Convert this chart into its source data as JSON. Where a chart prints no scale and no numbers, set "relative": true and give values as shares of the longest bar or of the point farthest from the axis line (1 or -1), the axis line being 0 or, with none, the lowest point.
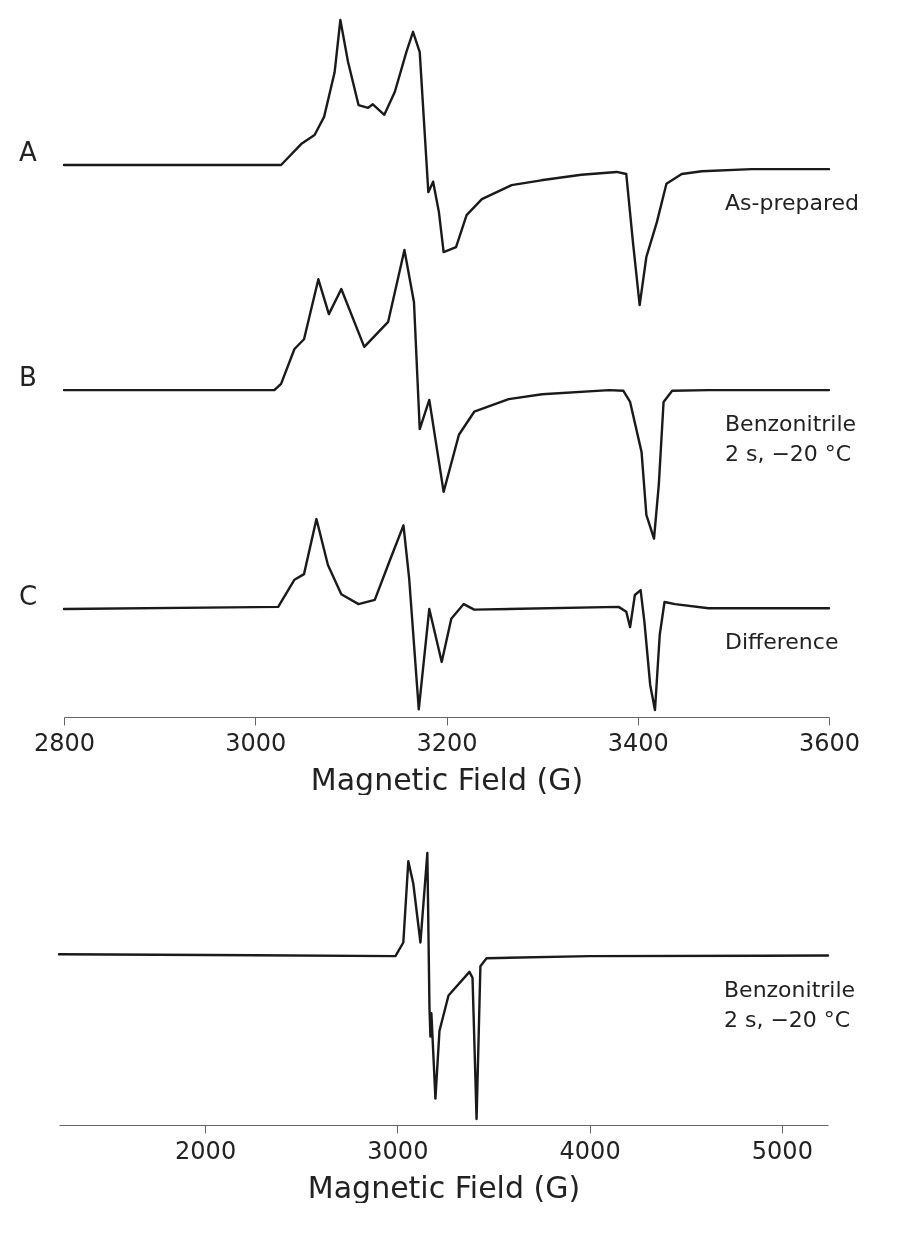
{
  "chart_data": [
    {
      "type": "line",
      "relative": true,
      "xlim": [
        2800,
        3600
      ],
      "xticks": [
        2800,
        3000,
        3200,
        3400,
        3600
      ],
      "xlabel": "Magnetic Field (G)",
      "annotations": [
        "A",
        "B",
        "C"
      ],
      "series": [
        {
          "name": "As-prepared",
          "color": "#1a1a1a",
          "x": [
            2800,
            3027,
            3048,
            3062,
            3072,
            3083,
            3089,
            3097,
            3108,
            3118,
            3123,
            3135,
            3146,
            3158,
            3165,
            3172,
            3181,
            3186,
            3192,
            3197,
            3210,
            3221,
            3237,
            3268,
            3299,
            3341,
            3378,
            3388,
            3395,
            3402,
            3409,
            3420,
            3430,
            3446,
            3467,
            3519,
            3600
          ],
          "values": [
            0.792,
            0.792,
            0.822,
            0.835,
            0.861,
            0.925,
            1,
            0.94,
            0.878,
            0.874,
            0.879,
            0.864,
            0.897,
            0.954,
            0.983,
            0.954,
            0.753,
            0.768,
            0.725,
            0.667,
            0.674,
            0.72,
            0.743,
            0.763,
            0.77,
            0.778,
            0.782,
            0.779,
            0.681,
            0.591,
            0.66,
            0.71,
            0.765,
            0.779,
            0.783,
            0.786,
            0.786
          ]
        },
        {
          "name": "Benzonitrile\n2 s, −20 °C",
          "color": "#1a1a1a",
          "x": [
            2800,
            3020,
            3027,
            3041,
            3051,
            3066,
            3077,
            3090,
            3114,
            3139,
            3156,
            3166,
            3172,
            3182,
            3197,
            3213,
            3229,
            3265,
            3300,
            3370,
            3385,
            3392,
            3404,
            3409,
            3417,
            3422,
            3427,
            3436,
            3474,
            3600
          ],
          "values": [
            0.469,
            0.469,
            0.478,
            0.528,
            0.542,
            0.628,
            0.578,
            0.614,
            0.531,
            0.567,
            0.67,
            0.595,
            0.413,
            0.455,
            0.323,
            0.405,
            0.438,
            0.456,
            0.463,
            0.469,
            0.468,
            0.452,
            0.38,
            0.29,
            0.256,
            0.333,
            0.452,
            0.468,
            0.469,
            0.469
          ]
        },
        {
          "name": "Difference",
          "color": "#1a1a1a",
          "x": [
            2800,
            3024,
            3041,
            3051,
            3064,
            3076,
            3090,
            3108,
            3125,
            3140,
            3155,
            3161,
            3171,
            3182,
            3195,
            3205,
            3218,
            3229,
            3380,
            3388,
            3392,
            3397,
            3403,
            3407,
            3413,
            3418,
            3423,
            3428,
            3439,
            3474,
            3600
          ],
          "values": [
            0.155,
            0.158,
            0.197,
            0.205,
            0.284,
            0.218,
            0.176,
            0.162,
            0.168,
            0.222,
            0.275,
            0.198,
            0.011,
            0.155,
            0.079,
            0.141,
            0.162,
            0.154,
            0.158,
            0.151,
            0.129,
            0.175,
            0.182,
            0.136,
            0.046,
            0.01,
            0.118,
            0.165,
            0.162,
            0.156,
            0.156
          ]
        }
      ]
    },
    {
      "type": "line",
      "relative": true,
      "xlim": [
        1240,
        5240
      ],
      "xticks": [
        2000,
        3000,
        4000,
        5000
      ],
      "xlabel": "Magnetic Field (G)",
      "series": [
        {
          "name": "Benzonitrile\n2 s, −20 °C",
          "color": "#1a1a1a",
          "x": [
            1240,
            2990,
            3031,
            3057,
            3083,
            3120,
            3156,
            3167,
            3172,
            3177,
            3198,
            3219,
            3266,
            3375,
            3391,
            3412,
            3432,
            3464,
            4000,
            5240
          ],
          "values": [
            0.628,
            0.621,
            0.671,
            0.97,
            0.887,
            0.671,
            1,
            0.433,
            0.325,
            0.411,
            0.097,
            0.346,
            0.476,
            0.563,
            0.541,
            0.022,
            0.584,
            0.613,
            0.621,
            0.623
          ]
        }
      ]
    }
  ]
}
